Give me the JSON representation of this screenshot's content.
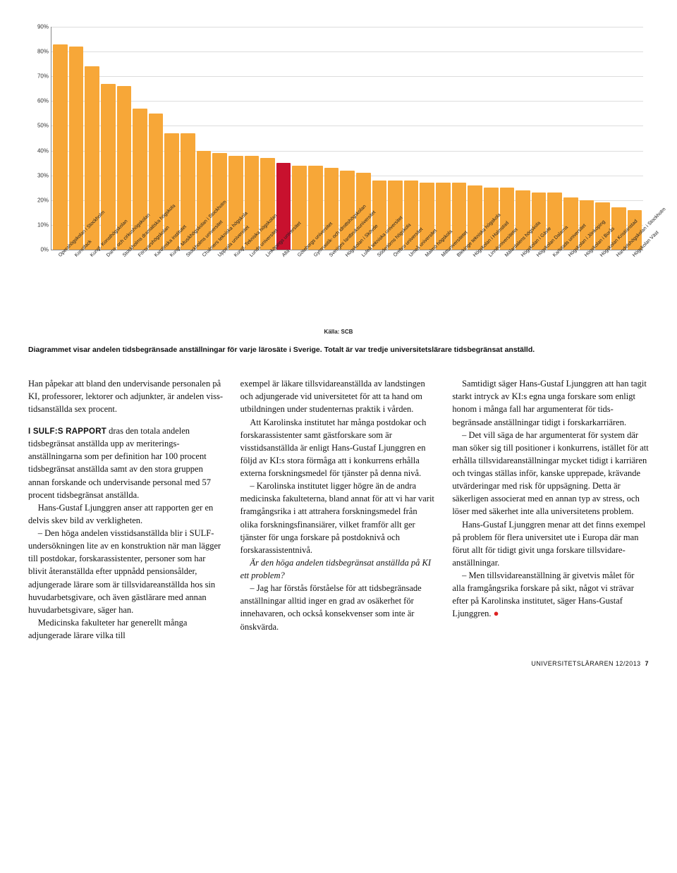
{
  "chart": {
    "type": "bar",
    "ylim": [
      0,
      90
    ],
    "ytick_step": 10,
    "ytick_suffix": "%",
    "axis_color": "#888888",
    "grid_color": "#dddddd",
    "label_fontsize": 8,
    "xlabel_fontsize": 7,
    "bar_default_color": "#f7a738",
    "highlight_color": "#c8112e",
    "background_color": "#ffffff",
    "categories": [
      "Operahögskolan i Stockholm",
      "Konstfack",
      "Kungl. Konsthögskolan",
      "Dans- och cirkushögskolan",
      "Stockholms dramatiska högskola",
      "Försvarshögskolan",
      "Karolinska institutet",
      "Kungl. Musikhögskolan i Stockholm",
      "Stockholms universitet",
      "Chalmers tekniska högskola",
      "Uppsala universitet",
      "Kungl. Tekniska högskolan",
      "Lunds universitet",
      "Linköpings universitet",
      "Alla",
      "Göteborgs universitet",
      "Gymnastik- och idrottshögskolan",
      "Sveriges lantbruksuniversitet",
      "Högskolan i Skövde",
      "Luleå tekniska universitet",
      "Södertörns högskola",
      "Örebro universitet",
      "Umeå universitet",
      "Malmö högskola",
      "Mittuniversitetet",
      "Blekinge tekniska högskola",
      "Högskolan i Halmstad",
      "Linnéuniversitetet",
      "Mälardalens högskola",
      "Högskolan i Gävle",
      "Högskolan Dalarna",
      "Karlstads universitet",
      "Högskolan i Jönköping",
      "Högskolan i Borås",
      "Högskolan Kristianstad",
      "Handelshögskolan i Stockholm",
      "Högskolan Väst"
    ],
    "values": [
      83,
      82,
      74,
      67,
      66,
      57,
      55,
      47,
      47,
      40,
      39,
      38,
      38,
      37,
      35,
      34,
      34,
      33,
      32,
      31,
      28,
      28,
      28,
      27,
      27,
      27,
      26,
      25,
      25,
      24,
      23,
      23,
      21,
      20,
      19,
      17,
      16
    ],
    "highlight_index": 14,
    "source_label": "Källa: SCB"
  },
  "caption": "Diagrammet visar andelen tidsbegränsade anställningar för varje lärosäte i Sverige. Totalt är var tredje universitetslärare tidsbegränsat anställd.",
  "article": {
    "p1": "Han påpekar att bland den under­visande personalen på KI, professorer, lektorer och adjunkter, är andelen viss­tidsanställda sex procent.",
    "p2lead": "I SULF:S RAPPORT",
    "p2": " dras den totala andelen tidsbegränsat anställda upp av merite­rings­anställningarna som per definition har 100 procent tidsbegränsat anställda samt av den stora gruppen annan fors­kande och undervisande personal med 57 procent tidsbegränsat anställda.",
    "p3": "Hans-Gustaf Ljunggren anser att rap­porten ger en delvis skev bild av verk­ligheten.",
    "p4": "– Den höga andelen visstidsanställda blir i SULF-undersökningen lite av en konstruktion när man lägger till post­dokar, forskarassistenter, personer som har blivit återanställda efter uppnådd pensionsålder, adjungerade lärare som är tillsvidareanställda hos sin huvud­arbets­givare, och även gästlärare med an­nan huvudarbetsgivare, säger han.",
    "p5": "Medicinska fakulteter har generellt många adjungerade lärare vilka till",
    "p6": "exempel är läkare tillsvidareanställda av landstingen och adjungerade vid univer­sitetet för att ta hand om utbildningen under studenternas praktik i vården.",
    "p7": "Att Karolinska institutet har många postdokar och forskarassistenter samt gästforskare som är visstidsanställda är enligt Hans-Gustaf Ljunggren en följd av KI:s stora förmåga att i konkurrens erhålla externa forskningsmedel för tjänster på denna nivå.",
    "p8": "– Karolinska institutet ligger högre än de andra medicinska fakulteterna, bland annat för att vi har varit framgångsrika i att attrahera forskningsmedel från olika forskningsfinansiärer, vilket framför allt ger tjänster för unga forskare på postdoknivå och forskarassistentnivå.",
    "subhead": "Är den höga andelen tidsbegränsat anställda på KI ett problem?",
    "p9": "– Jag har förstås förståelse för att tidsbegränsade anställningar alltid inger en grad av osäkerhet för innehavaren, och också konsekvenser som inte är önskvärda.",
    "p10": "Samtidigt säger Hans-Gustaf Ljung­gren att han tagit starkt intryck av KI:s egna unga forskare som enligt honom i många fall har argumenterat för tids­begränsade anställningar tidigt i fors­karkarriären.",
    "p11": "– Det vill säga de har argumente­rat för system där man söker sig till positioner i konkurrens, istället för att erhålla tillsvidareanställningar mycket tidigt i karriären och tvingas ställas inför, kanske upprepade, krävande utvärderingar med risk för uppsägning. Detta är säkerligen associerat med en annan typ av stress, och löser med sä­kerhet inte alla universitetens problem.",
    "p12": "Hans-Gustaf Ljunggren menar att det finns exempel på problem för flera uni­versitet ute i Europa där man förut allt för tidigt givit unga forskare tillsvidare­anställningar.",
    "p13": "– Men tillsvidareanställning är givet­vis målet för alla framgångsrika fors­kare på sikt, något vi strävar efter på Karolinska institutet, säger Hans-Gustaf Ljunggren."
  },
  "footer": {
    "label": "UNIVERSITETSLÄRAREN 12/2013",
    "page": "7"
  }
}
